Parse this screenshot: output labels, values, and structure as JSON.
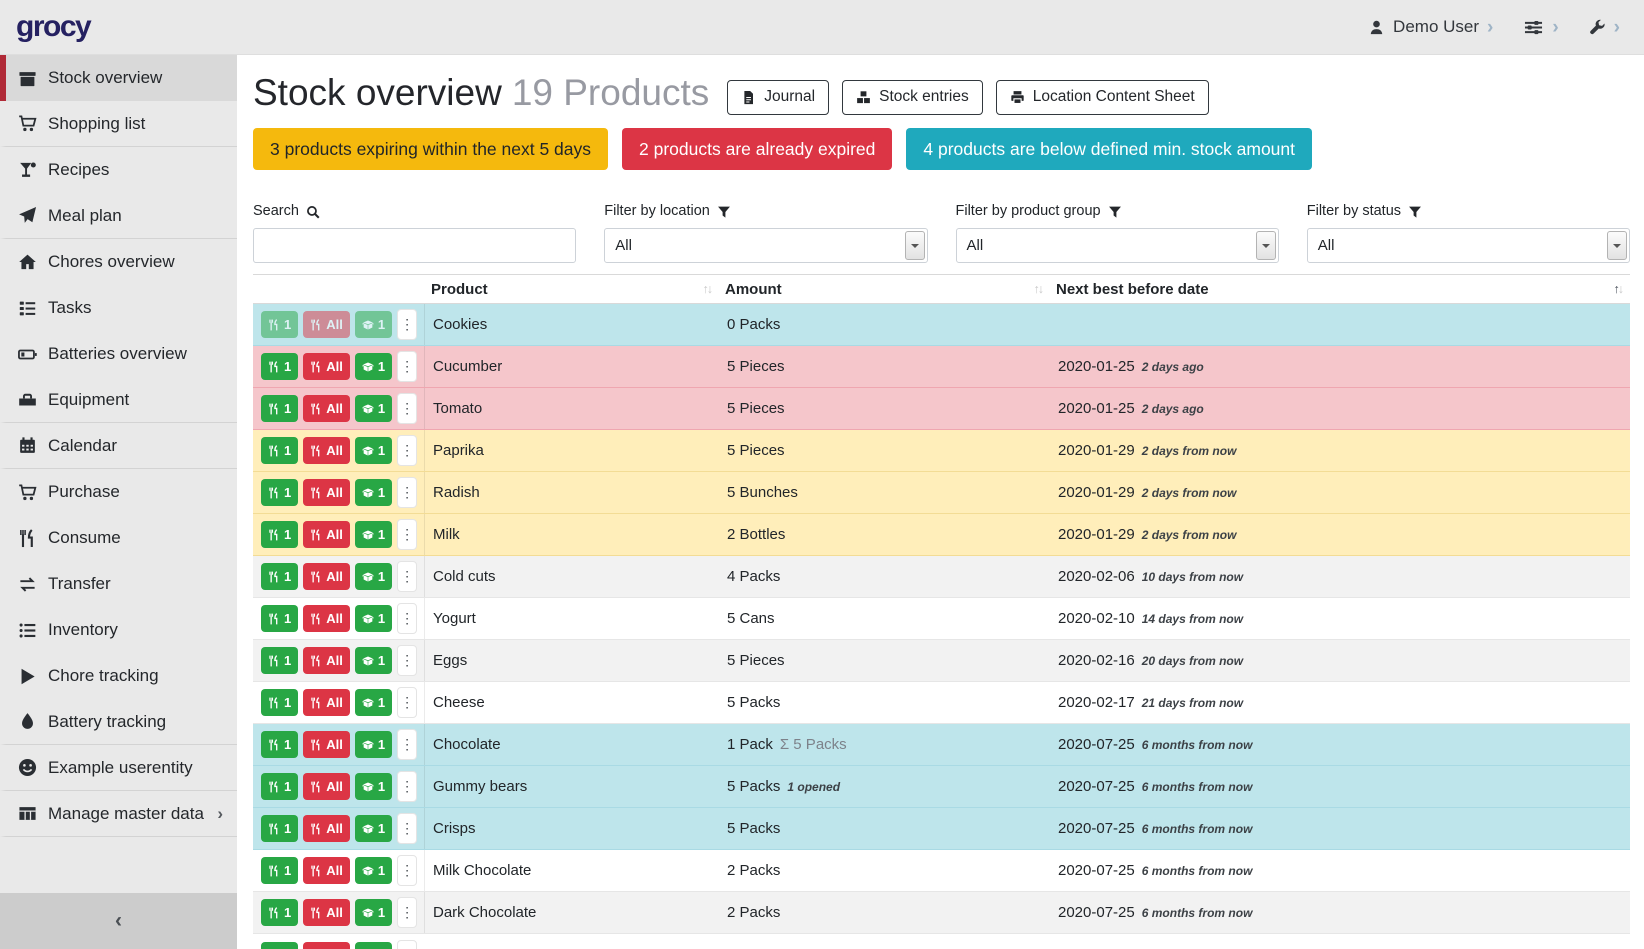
{
  "header": {
    "logo": "grocy",
    "user_label": "Demo User"
  },
  "icons": {
    "kebab": "⋮",
    "chevron_right": "›",
    "collapse": "‹",
    "sort_asc": "↑",
    "sort_desc": "↓"
  },
  "sidebar": {
    "items": [
      {
        "label": "Stock overview",
        "icon": "box",
        "active": true
      },
      {
        "label": "Shopping list",
        "icon": "cart",
        "divider_after": true
      },
      {
        "label": "Recipes",
        "icon": "cocktail"
      },
      {
        "label": "Meal plan",
        "icon": "paper-plane",
        "divider_after": true
      },
      {
        "label": "Chores overview",
        "icon": "home"
      },
      {
        "label": "Tasks",
        "icon": "tasks"
      },
      {
        "label": "Batteries overview",
        "icon": "battery"
      },
      {
        "label": "Equipment",
        "icon": "toolbox",
        "divider_after": true
      },
      {
        "label": "Calendar",
        "icon": "calendar",
        "divider_after": true
      },
      {
        "label": "Purchase",
        "icon": "cart"
      },
      {
        "label": "Consume",
        "icon": "utensils"
      },
      {
        "label": "Transfer",
        "icon": "exchange"
      },
      {
        "label": "Inventory",
        "icon": "list"
      },
      {
        "label": "Chore tracking",
        "icon": "play"
      },
      {
        "label": "Battery tracking",
        "icon": "tint",
        "divider_after": true
      },
      {
        "label": "Example userentity",
        "icon": "smiley",
        "divider_after": true
      },
      {
        "label": "Manage master data",
        "icon": "table",
        "chevron": "›",
        "divider_after": true
      }
    ]
  },
  "page": {
    "title": "Stock overview",
    "subtitle": "19 Products",
    "toolbar": [
      {
        "label": "Journal",
        "icon": "file"
      },
      {
        "label": "Stock entries",
        "icon": "cubes"
      },
      {
        "label": "Location Content Sheet",
        "icon": "print"
      }
    ],
    "banners": [
      {
        "text": "3 products expiring within the next 5 days",
        "type": "warning"
      },
      {
        "text": "2 products are already expired",
        "type": "danger"
      },
      {
        "text": "4 products are below defined min. stock amount",
        "type": "info"
      }
    ],
    "filters": {
      "search_label": "Search",
      "search_value": "",
      "location_label": "Filter by location",
      "location_value": "All",
      "group_label": "Filter by product group",
      "group_value": "All",
      "status_label": "Filter by status",
      "status_value": "All"
    }
  },
  "table": {
    "columns": [
      {
        "label": "Product",
        "sorted": false
      },
      {
        "label": "Amount",
        "sorted": false
      },
      {
        "label": "Next best before date",
        "sorted": true
      }
    ],
    "row_buttons": {
      "consume_one": "1",
      "consume_all": "All",
      "open_one": "1"
    },
    "rows": [
      {
        "product": "Cookies",
        "amount": "0 Packs",
        "date": "",
        "date_note": "",
        "variant": "info",
        "disabled": true
      },
      {
        "product": "Cucumber",
        "amount": "5 Pieces",
        "date": "2020-01-25",
        "date_note": "2 days ago",
        "variant": "danger"
      },
      {
        "product": "Tomato",
        "amount": "5 Pieces",
        "date": "2020-01-25",
        "date_note": "2 days ago",
        "variant": "danger"
      },
      {
        "product": "Paprika",
        "amount": "5 Pieces",
        "date": "2020-01-29",
        "date_note": "2 days from now",
        "variant": "warning"
      },
      {
        "product": "Radish",
        "amount": "5 Bunches",
        "date": "2020-01-29",
        "date_note": "2 days from now",
        "variant": "warning"
      },
      {
        "product": "Milk",
        "amount": "2 Bottles",
        "date": "2020-01-29",
        "date_note": "2 days from now",
        "variant": "warning"
      },
      {
        "product": "Cold cuts",
        "amount": "4 Packs",
        "date": "2020-02-06",
        "date_note": "10 days from now",
        "variant": "even"
      },
      {
        "product": "Yogurt",
        "amount": "5 Cans",
        "date": "2020-02-10",
        "date_note": "14 days from now",
        "variant": "odd"
      },
      {
        "product": "Eggs",
        "amount": "5 Pieces",
        "date": "2020-02-16",
        "date_note": "20 days from now",
        "variant": "even"
      },
      {
        "product": "Cheese",
        "amount": "5 Packs",
        "date": "2020-02-17",
        "date_note": "21 days from now",
        "variant": "odd"
      },
      {
        "product": "Chocolate",
        "amount": "1 Pack",
        "amount_sum": "Σ 5 Packs",
        "date": "2020-07-25",
        "date_note": "6 months from now",
        "variant": "info"
      },
      {
        "product": "Gummy bears",
        "amount": "5 Packs",
        "amount_note": "1 opened",
        "date": "2020-07-25",
        "date_note": "6 months from now",
        "variant": "info"
      },
      {
        "product": "Crisps",
        "amount": "5 Packs",
        "date": "2020-07-25",
        "date_note": "6 months from now",
        "variant": "info"
      },
      {
        "product": "Milk Chocolate",
        "amount": "2 Packs",
        "date": "2020-07-25",
        "date_note": "6 months from now",
        "variant": "odd"
      },
      {
        "product": "Dark Chocolate",
        "amount": "2 Packs",
        "date": "2020-07-25",
        "date_note": "6 months from now",
        "variant": "even"
      }
    ],
    "has_partial_row": true
  },
  "colors": {
    "accent_red": "#b02a37",
    "button_green": "#28a745",
    "button_red": "#dc3545",
    "banner_warning": "#f5b90d",
    "banner_danger": "#dc3545",
    "banner_info": "#1fa9bd",
    "row_below_min_stock": "#bee5eb",
    "row_expired": "#f5c6cb",
    "row_expiring": "#ffeeba"
  }
}
